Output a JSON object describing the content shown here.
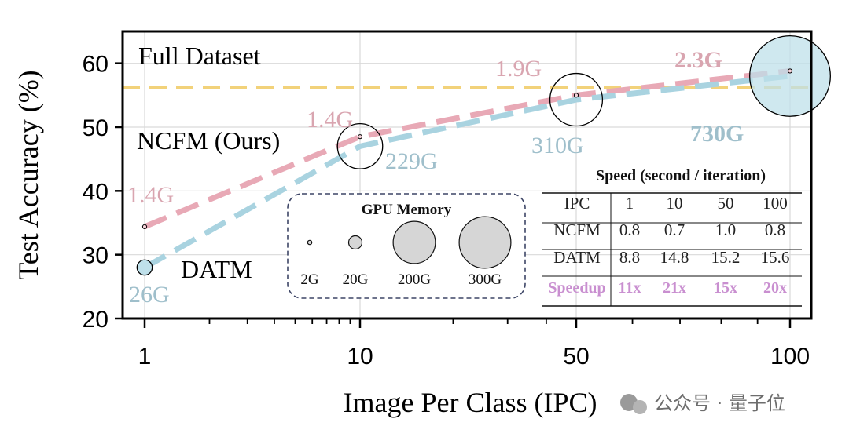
{
  "chart_data": {
    "type": "line",
    "xlabel": "Image Per Class (IPC)",
    "ylabel": "Test Accuracy (%)",
    "x_ticks": [
      "1",
      "10",
      "50",
      "100"
    ],
    "y_ticks": [
      "20",
      "30",
      "40",
      "50",
      "60"
    ],
    "ylim": [
      20,
      65
    ],
    "grid": true,
    "full_dataset": {
      "label": "Full Dataset",
      "value": 56.2,
      "color": "#f2d27a"
    },
    "series": [
      {
        "name": "NCFM (Ours)",
        "color": "#e8a9b6",
        "points": [
          {
            "x": "1",
            "y": 34.4,
            "memory": "1.4G"
          },
          {
            "x": "10",
            "y": 48.5,
            "memory": "1.4G"
          },
          {
            "x": "50",
            "y": 55.0,
            "memory": "1.9G"
          },
          {
            "x": "100",
            "y": 58.8,
            "memory": "2.3G"
          }
        ]
      },
      {
        "name": "DATM",
        "color": "#a9d3e0",
        "points": [
          {
            "x": "1",
            "y": 28.0,
            "memory": "26G"
          },
          {
            "x": "10",
            "y": 47.0,
            "memory": "229G"
          },
          {
            "x": "50",
            "y": 54.3,
            "memory": "310G"
          },
          {
            "x": "100",
            "y": 58.0,
            "memory": "730G"
          }
        ]
      }
    ],
    "memory_legend": {
      "title": "GPU Memory",
      "items": [
        {
          "label": "2G",
          "gb": 2
        },
        {
          "label": "20G",
          "gb": 20
        },
        {
          "label": "200G",
          "gb": 200
        },
        {
          "label": "300G",
          "gb": 300
        }
      ]
    },
    "speed_table": {
      "title": "Speed (second / iteration)",
      "header": [
        "IPC",
        "1",
        "10",
        "50",
        "100"
      ],
      "rows": [
        [
          "NCFM",
          "0.8",
          "0.7",
          "1.0",
          "0.8"
        ],
        [
          "DATM",
          "8.8",
          "14.8",
          "15.2",
          "15.6"
        ],
        [
          "Speedup",
          "11x",
          "21x",
          "15x",
          "20x"
        ]
      ],
      "speedup_color": "#c98fd0"
    }
  },
  "watermark": "公众号 · 量子位"
}
